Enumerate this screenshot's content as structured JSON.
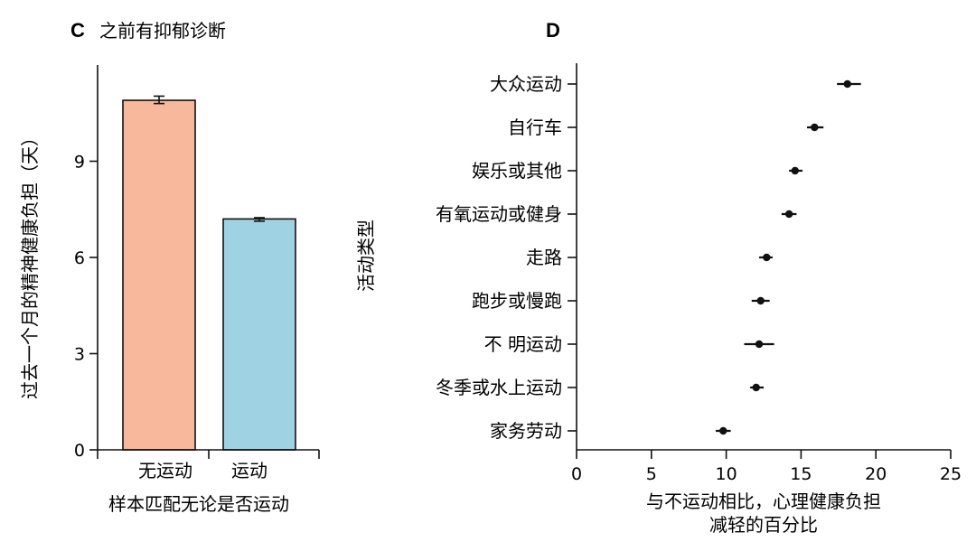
{
  "chart_data": [
    {
      "panel": "C",
      "type": "bar",
      "title": "之前有抑郁诊断",
      "xlabel": "样本匹配无论是否运动",
      "ylabel": "过去一个月的精神健康负担（天）",
      "categories": [
        "无运动",
        "运动"
      ],
      "values": [
        10.9,
        7.2
      ],
      "error_low": [
        10.8,
        7.13
      ],
      "error_high": [
        11.03,
        7.24
      ],
      "colors": [
        "#f7b89c",
        "#9fd3e4"
      ],
      "yticks": [
        "0",
        "3",
        "6",
        "9"
      ],
      "ylim": [
        0,
        12
      ]
    },
    {
      "panel": "D",
      "type": "scatter",
      "title": "",
      "xlabel": [
        "与不运动相比，心理健康负担",
        "减轻的百分比"
      ],
      "ylabel": "活动类型",
      "categories": [
        "大众运动",
        "自行车",
        "娱乐或其他",
        "有氧运动或健身",
        "走路",
        "跑步或慢跑",
        "不 明运动",
        "冬季或水上运动",
        "家务劳动"
      ],
      "values": [
        18.1,
        15.9,
        14.6,
        14.2,
        12.7,
        12.3,
        12.2,
        12.0,
        9.8
      ],
      "ci_low": [
        17.4,
        15.4,
        14.2,
        13.7,
        12.2,
        11.7,
        11.2,
        11.6,
        9.3
      ],
      "ci_high": [
        19.0,
        16.5,
        15.1,
        14.7,
        13.1,
        12.9,
        13.2,
        12.5,
        10.3
      ],
      "xticks": [
        "0",
        "5",
        "10",
        "15",
        "20",
        "25"
      ],
      "xlim": [
        0,
        25
      ]
    }
  ]
}
